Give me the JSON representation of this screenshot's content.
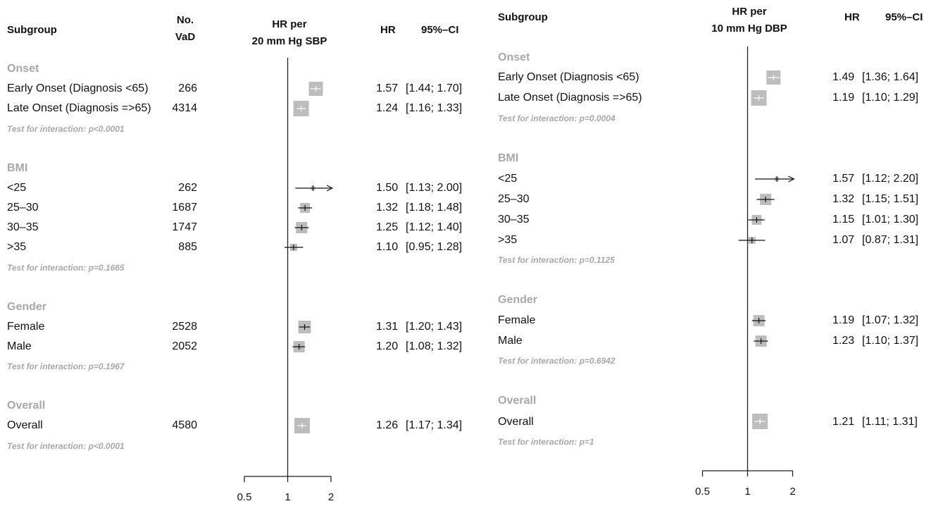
{
  "chart_data": [
    {
      "type": "forest",
      "columns": {
        "subgroup": "Subgroup",
        "n_line1": "No.",
        "n_line2": "VaD",
        "effect_line1": "HR per",
        "effect_line2": "20 mm Hg SBP",
        "hr": "HR",
        "ci": "95%–CI"
      },
      "x_ticks": [
        "0.5",
        "1",
        "2"
      ],
      "x_scale": "log",
      "xlim": [
        0.5,
        2
      ],
      "ref_line": 1,
      "groups": [
        {
          "name": "Onset",
          "test": "Test for interaction: p<0.0001",
          "rows": [
            {
              "label": "Early Onset (Diagnosis <65)",
              "n": "266",
              "hr": 1.57,
              "lo": 1.44,
              "hi": 1.7,
              "hr_text": "1.57",
              "ci_text": "[1.44; 1.70]"
            },
            {
              "label": "Late Onset (Diagnosis =>65)",
              "n": "4314",
              "hr": 1.24,
              "lo": 1.16,
              "hi": 1.33,
              "hr_text": "1.24",
              "ci_text": "[1.16; 1.33]"
            }
          ]
        },
        {
          "name": "BMI",
          "test": "Test for interaction: p=0.1665",
          "rows": [
            {
              "label": "<25",
              "n": "262",
              "hr": 1.5,
              "lo": 1.13,
              "hi": 2.0,
              "hr_text": "1.50",
              "ci_text": "[1.13; 2.00]"
            },
            {
              "label": "25–30",
              "n": "1687",
              "hr": 1.32,
              "lo": 1.18,
              "hi": 1.48,
              "hr_text": "1.32",
              "ci_text": "[1.18; 1.48]"
            },
            {
              "label": "30–35",
              "n": "1747",
              "hr": 1.25,
              "lo": 1.12,
              "hi": 1.4,
              "hr_text": "1.25",
              "ci_text": "[1.12; 1.40]"
            },
            {
              "label": ">35",
              "n": "885",
              "hr": 1.1,
              "lo": 0.95,
              "hi": 1.28,
              "hr_text": "1.10",
              "ci_text": "[0.95; 1.28]"
            }
          ]
        },
        {
          "name": "Gender",
          "test": "Test for interaction: p=0.1967",
          "rows": [
            {
              "label": "Female",
              "n": "2528",
              "hr": 1.31,
              "lo": 1.2,
              "hi": 1.43,
              "hr_text": "1.31",
              "ci_text": "[1.20; 1.43]"
            },
            {
              "label": "Male",
              "n": "2052",
              "hr": 1.2,
              "lo": 1.08,
              "hi": 1.32,
              "hr_text": "1.20",
              "ci_text": "[1.08; 1.32]"
            }
          ]
        },
        {
          "name": "Overall",
          "test": "Test for interaction: p<0.0001",
          "rows": [
            {
              "label": "Overall",
              "n": "4580",
              "hr": 1.26,
              "lo": 1.17,
              "hi": 1.34,
              "hr_text": "1.26",
              "ci_text": "[1.17; 1.34]"
            }
          ]
        }
      ]
    },
    {
      "type": "forest",
      "columns": {
        "subgroup": "Subgroup",
        "effect_line1": "HR per",
        "effect_line2": "10 mm Hg DBP",
        "hr": "HR",
        "ci": "95%–CI"
      },
      "x_ticks": [
        "0.5",
        "1",
        "2"
      ],
      "x_scale": "log",
      "xlim": [
        0.5,
        2
      ],
      "ref_line": 1,
      "groups": [
        {
          "name": "Onset",
          "test": "Test for interaction: p=0.0004",
          "rows": [
            {
              "label": "Early Onset (Diagnosis <65)",
              "hr": 1.49,
              "lo": 1.36,
              "hi": 1.64,
              "hr_text": "1.49",
              "ci_text": "[1.36; 1.64]"
            },
            {
              "label": "Late Onset (Diagnosis =>65)",
              "hr": 1.19,
              "lo": 1.1,
              "hi": 1.29,
              "hr_text": "1.19",
              "ci_text": "[1.10; 1.29]"
            }
          ]
        },
        {
          "name": "BMI",
          "test": "Test for interaction: p=0.1125",
          "rows": [
            {
              "label": "<25",
              "hr": 1.57,
              "lo": 1.12,
              "hi": 2.2,
              "hr_text": "1.57",
              "ci_text": "[1.12; 2.20]"
            },
            {
              "label": "25–30",
              "hr": 1.32,
              "lo": 1.15,
              "hi": 1.51,
              "hr_text": "1.32",
              "ci_text": "[1.15; 1.51]"
            },
            {
              "label": "30–35",
              "hr": 1.15,
              "lo": 1.01,
              "hi": 1.3,
              "hr_text": "1.15",
              "ci_text": "[1.01; 1.30]"
            },
            {
              "label": ">35",
              "hr": 1.07,
              "lo": 0.87,
              "hi": 1.31,
              "hr_text": "1.07",
              "ci_text": "[0.87; 1.31]"
            }
          ]
        },
        {
          "name": "Gender",
          "test": "Test for interaction: p=0.6942",
          "rows": [
            {
              "label": "Female",
              "hr": 1.19,
              "lo": 1.07,
              "hi": 1.32,
              "hr_text": "1.19",
              "ci_text": "[1.07; 1.32]"
            },
            {
              "label": "Male",
              "hr": 1.23,
              "lo": 1.1,
              "hi": 1.37,
              "hr_text": "1.23",
              "ci_text": "[1.10; 1.37]"
            }
          ]
        },
        {
          "name": "Overall",
          "test": "Test for interaction: p=1",
          "rows": [
            {
              "label": "Overall",
              "hr": 1.21,
              "lo": 1.11,
              "hi": 1.31,
              "hr_text": "1.21",
              "ci_text": "[1.11; 1.31]"
            }
          ]
        }
      ]
    }
  ]
}
